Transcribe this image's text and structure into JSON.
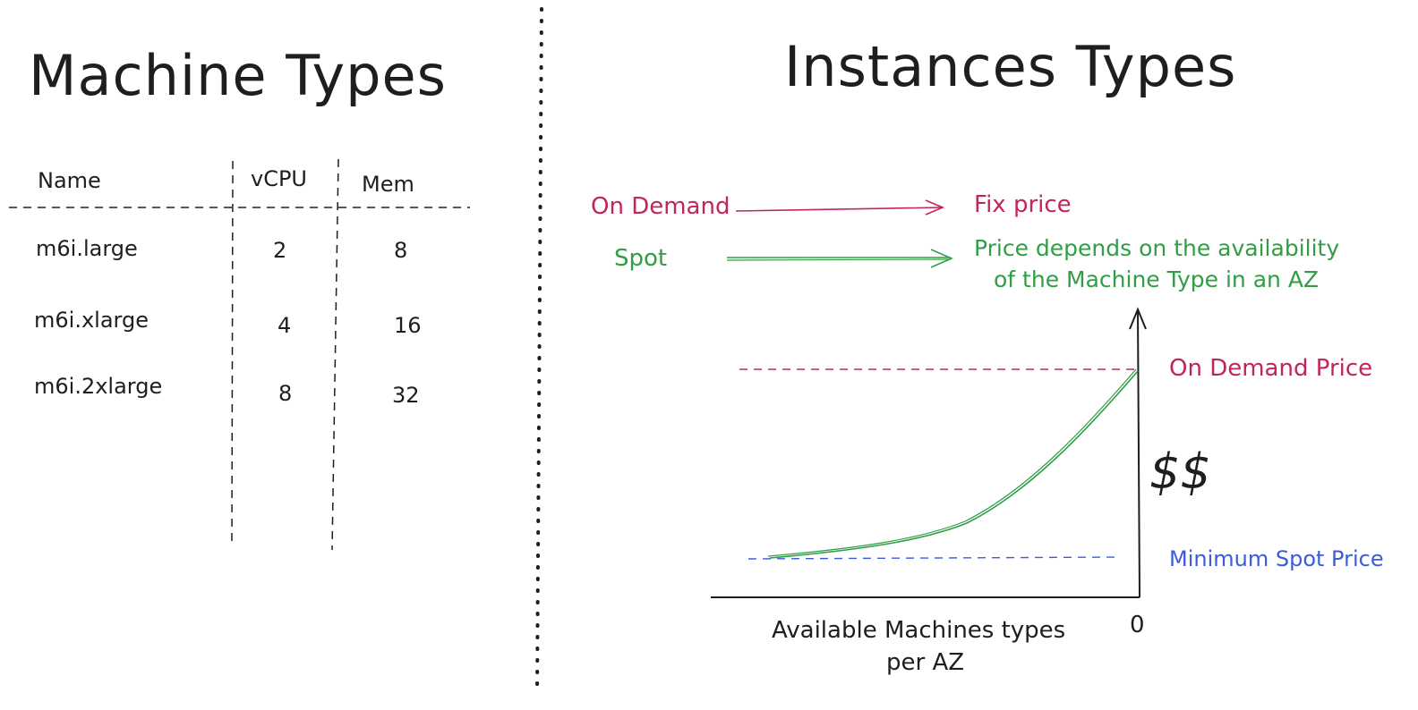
{
  "left_panel": {
    "title": "Machine Types",
    "table": {
      "headers": [
        "Name",
        "vCPU",
        "Mem"
      ],
      "rows": [
        [
          "m6i.large",
          "2",
          "8"
        ],
        [
          "m6i.xlarge",
          "4",
          "16"
        ],
        [
          "m6i.2xlarge",
          "8",
          "32"
        ]
      ]
    }
  },
  "right_panel": {
    "title": "Instances Types",
    "on_demand": {
      "label": "On Demand",
      "result": "Fix price"
    },
    "spot": {
      "label": "Spot",
      "result_line1": "Price depends on the availability",
      "result_line2": "of the Machine Type in an AZ"
    },
    "graph": {
      "on_demand_price_label": "On Demand Price",
      "min_spot_price_label": "Minimum Spot Price",
      "y_axis_label": "$$",
      "x_axis_label_line1": "Available Machines types",
      "x_axis_label_line2": "per AZ",
      "x_origin_label": "0"
    }
  },
  "colors": {
    "red": "#c2255c",
    "green": "#2f9e44",
    "blue": "#3b5bdb",
    "ink": "#1e1e1e"
  }
}
